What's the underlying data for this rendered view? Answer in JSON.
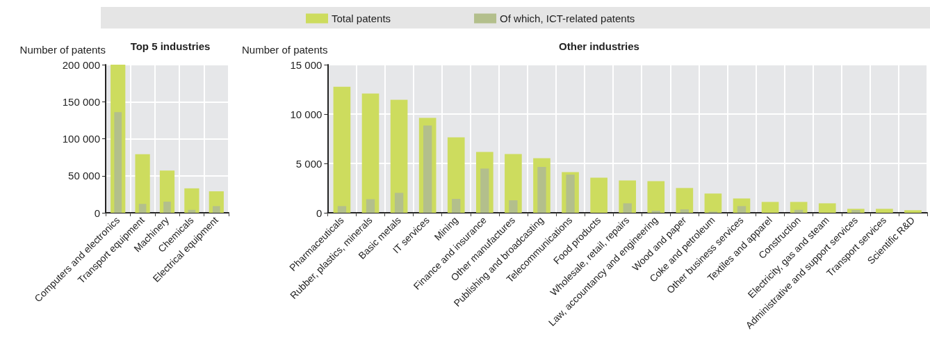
{
  "chart_data": [
    {
      "type": "bar",
      "title": "Top 5 industries",
      "ylabel": "Number of patents",
      "categories": [
        "Computers and electronics",
        "Transport equipment",
        "Machinery",
        "Chemicals",
        "Electrical equipment"
      ],
      "series": [
        {
          "color": "#cddc5e",
          "values": [
            200000,
            79000,
            57000,
            33000,
            29000
          ]
        },
        {
          "color": "#b3bf8c",
          "values": [
            136000,
            12000,
            15000,
            4000,
            9000
          ]
        }
      ],
      "ylim": [
        0,
        200000
      ],
      "yticks": [
        0,
        50000,
        100000,
        150000,
        200000
      ],
      "grid": true,
      "legend": false
    },
    {
      "type": "bar",
      "title": "Other industries",
      "ylabel": "Number of patents",
      "categories": [
        "Pharmaceuticals",
        "Rubber, plastics, minerals",
        "Basic metals",
        "IT services",
        "Mining",
        "Finance and insurance",
        "Other manufactures",
        "Publishing and broadcasting",
        "Telecommunications",
        "Food products",
        "Wholesale, retail, repairs",
        "Law, accountancy and engineering",
        "Wood and paper",
        "Coke and petroleum",
        "Other business services",
        "Textiles and apparel",
        "Construction",
        "Electricity, gas and steam",
        "Administrative and support services",
        "Transport services",
        "Scientific R&D"
      ],
      "series": [
        {
          "name": "Total patents",
          "color": "#cddc5e",
          "values": [
            12770,
            12070,
            11440,
            9610,
            7640,
            6160,
            5950,
            5530,
            4120,
            3560,
            3280,
            3210,
            2510,
            1950,
            1450,
            1100,
            1100,
            960,
            400,
            400,
            260
          ]
        },
        {
          "name": "Of which, ICT-related patents",
          "color": "#b3bf8c",
          "values": [
            680,
            1380,
            2020,
            8840,
            1410,
            4480,
            1270,
            4640,
            3870,
            0,
            960,
            210,
            350,
            120,
            680,
            0,
            300,
            0,
            280,
            0,
            0
          ]
        }
      ],
      "ylim": [
        0,
        15000
      ],
      "yticks": [
        0,
        5000,
        10000,
        15000
      ],
      "grid": true,
      "legend": "top"
    }
  ]
}
